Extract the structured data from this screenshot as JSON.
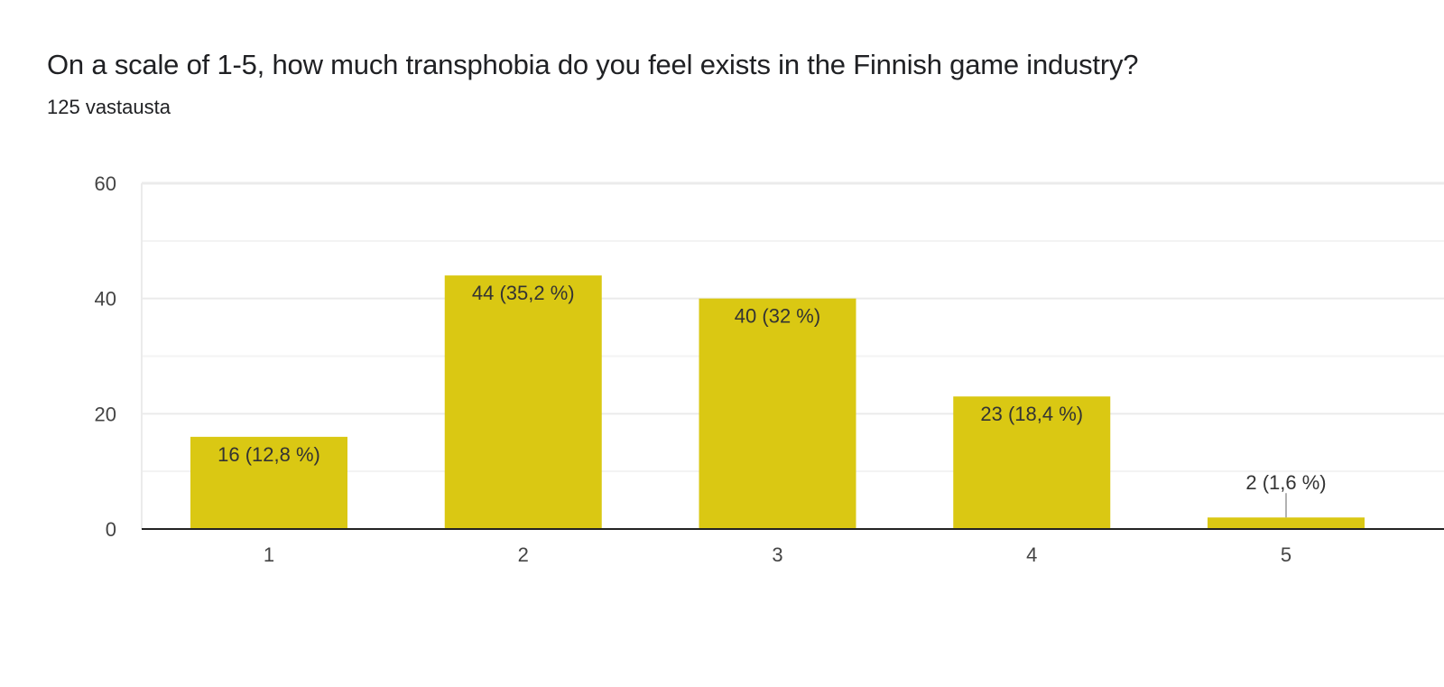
{
  "header": {
    "title": "On a scale of 1-5, how much transphobia do you feel exists in the Finnish game industry?",
    "responses": "125 vastausta"
  },
  "chart_data": {
    "type": "bar",
    "title": "On a scale of 1-5, how much transphobia do you feel exists in the Finnish game industry?",
    "subtitle": "125 vastausta",
    "xlabel": "",
    "ylabel": "",
    "categories": [
      "1",
      "2",
      "3",
      "4",
      "5"
    ],
    "values": [
      16,
      44,
      40,
      23,
      2
    ],
    "data_labels": [
      "16 (12,8 %)",
      "44 (35,2 %)",
      "40 (32 %)",
      "23 (18,4 %)",
      "2 (1,6 %)"
    ],
    "ylim": [
      0,
      60
    ],
    "yticks": [
      0,
      20,
      40,
      60
    ],
    "grid": true,
    "bar_color": "#dac813",
    "legend": "none"
  }
}
